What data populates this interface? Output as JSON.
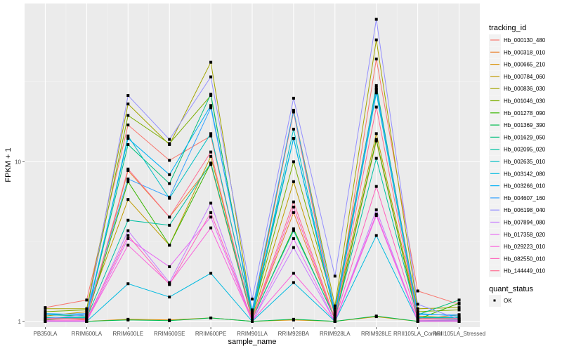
{
  "chart_data": {
    "type": "line",
    "xlabel": "sample_name",
    "ylabel": "FPKM + 1",
    "yscale": "log10",
    "ylim": [
      0.92,
      98
    ],
    "yticks": [
      1,
      10
    ],
    "ytick_labels": [
      "1",
      "10"
    ],
    "grid": true,
    "categories": [
      "PB350LA",
      "RRIM600LA",
      "RRIM600LE",
      "RRIM600SE",
      "RRIM600PE",
      "RRIM901LA",
      "RRIM928BA",
      "RRIM928LA",
      "RRIM928LE",
      "RRII105LA_Control",
      "RRII105LA_Stressed"
    ],
    "legend": {
      "position": "right",
      "color_title": "tracking_id",
      "shape_title": "quant_status",
      "shape_entries": [
        "OK"
      ]
    },
    "series": [
      {
        "name": "Hb_000130_480",
        "color": "#F8766D",
        "values": [
          1.22,
          1.36,
          17.0,
          10.2,
          14.5,
          1.08,
          20.5,
          1.05,
          44.0,
          1.55,
          1.28
        ]
      },
      {
        "name": "Hb_000318_010",
        "color": "#EA8331",
        "values": [
          1.05,
          1.02,
          8.8,
          4.5,
          9.6,
          1.02,
          4.8,
          1.02,
          13.5,
          1.03,
          1.1
        ]
      },
      {
        "name": "Hb_000665_210",
        "color": "#D89000",
        "values": [
          1.0,
          1.0,
          1.03,
          1.02,
          1.05,
          1.0,
          1.02,
          1.0,
          1.07,
          1.0,
          1.0
        ]
      },
      {
        "name": "Hb_000784_060",
        "color": "#C09B00",
        "values": [
          1.08,
          1.15,
          5.8,
          3.0,
          10.8,
          1.05,
          7.5,
          1.1,
          15.0,
          1.08,
          1.05
        ]
      },
      {
        "name": "Hb_000836_030",
        "color": "#A3A500",
        "values": [
          1.2,
          1.2,
          23.0,
          12.8,
          42.0,
          1.12,
          21.0,
          1.25,
          58.0,
          1.2,
          1.22
        ]
      },
      {
        "name": "Hb_001046_030",
        "color": "#7CAE00",
        "values": [
          1.15,
          1.18,
          19.5,
          13.0,
          26.0,
          1.1,
          10.0,
          1.2,
          29.0,
          1.15,
          1.18
        ]
      },
      {
        "name": "Hb_001278_090",
        "color": "#39B600",
        "values": [
          1.02,
          1.05,
          7.5,
          3.0,
          9.8,
          1.03,
          3.8,
          1.04,
          13.8,
          1.03,
          1.3
        ]
      },
      {
        "name": "Hb_001369_390",
        "color": "#00BB4E",
        "values": [
          1.0,
          1.0,
          1.02,
          1.01,
          1.05,
          1.0,
          1.03,
          1.0,
          1.08,
          1.0,
          1.0
        ]
      },
      {
        "name": "Hb_001629_050",
        "color": "#00BF7D",
        "values": [
          1.1,
          1.08,
          12.8,
          7.3,
          26.5,
          1.06,
          14.0,
          1.1,
          30.0,
          1.1,
          1.36
        ]
      },
      {
        "name": "Hb_002095_020",
        "color": "#00C1A3",
        "values": [
          1.05,
          1.05,
          4.3,
          4.0,
          9.8,
          1.04,
          3.7,
          1.05,
          10.5,
          1.05,
          1.05
        ]
      },
      {
        "name": "Hb_002635_010",
        "color": "#00BFC4",
        "values": [
          1.06,
          1.06,
          14.5,
          5.9,
          15.0,
          1.08,
          16.0,
          1.08,
          27.0,
          1.06,
          1.06
        ]
      },
      {
        "name": "Hb_003142_080",
        "color": "#00BAE0",
        "values": [
          1.01,
          1.0,
          1.72,
          1.42,
          2.0,
          1.0,
          1.75,
          1.0,
          3.45,
          1.01,
          1.02
        ]
      },
      {
        "name": "Hb_003266_010",
        "color": "#00B0F6",
        "values": [
          1.12,
          1.1,
          14.0,
          8.3,
          22.5,
          1.15,
          14.0,
          1.12,
          28.0,
          1.12,
          1.08
        ]
      },
      {
        "name": "Hb_004607_160",
        "color": "#35A2FF",
        "values": [
          1.1,
          1.12,
          7.8,
          6.0,
          21.8,
          1.18,
          21.0,
          1.15,
          28.5,
          1.1,
          1.1
        ]
      },
      {
        "name": "Hb_006198_040",
        "color": "#9590FF",
        "values": [
          1.04,
          1.1,
          26.0,
          13.8,
          34.0,
          1.38,
          25.0,
          1.92,
          78.0,
          1.28,
          1.03
        ]
      },
      {
        "name": "Hb_007894_080",
        "color": "#C77CFF",
        "values": [
          1.0,
          1.0,
          3.7,
          1.75,
          5.5,
          1.0,
          2.9,
          1.0,
          5.0,
          1.0,
          1.0
        ]
      },
      {
        "name": "Hb_017358_020",
        "color": "#E76BF3",
        "values": [
          1.0,
          1.0,
          3.3,
          2.2,
          4.5,
          1.0,
          3.3,
          1.0,
          4.6,
          1.0,
          1.0
        ]
      },
      {
        "name": "Hb_029223_010",
        "color": "#FA62DB",
        "values": [
          1.01,
          1.01,
          3.0,
          1.72,
          3.85,
          1.01,
          2.0,
          1.01,
          4.7,
          1.01,
          1.01
        ]
      },
      {
        "name": "Hb_082550_010",
        "color": "#FF62BC",
        "values": [
          1.03,
          1.03,
          3.45,
          1.7,
          4.8,
          1.02,
          5.2,
          1.03,
          7.0,
          1.03,
          1.03
        ]
      },
      {
        "name": "Hb_144449_010",
        "color": "#FF6C91",
        "values": [
          1.04,
          1.04,
          9.0,
          4.5,
          11.5,
          1.03,
          5.6,
          1.04,
          22.0,
          1.04,
          1.04
        ]
      }
    ]
  }
}
